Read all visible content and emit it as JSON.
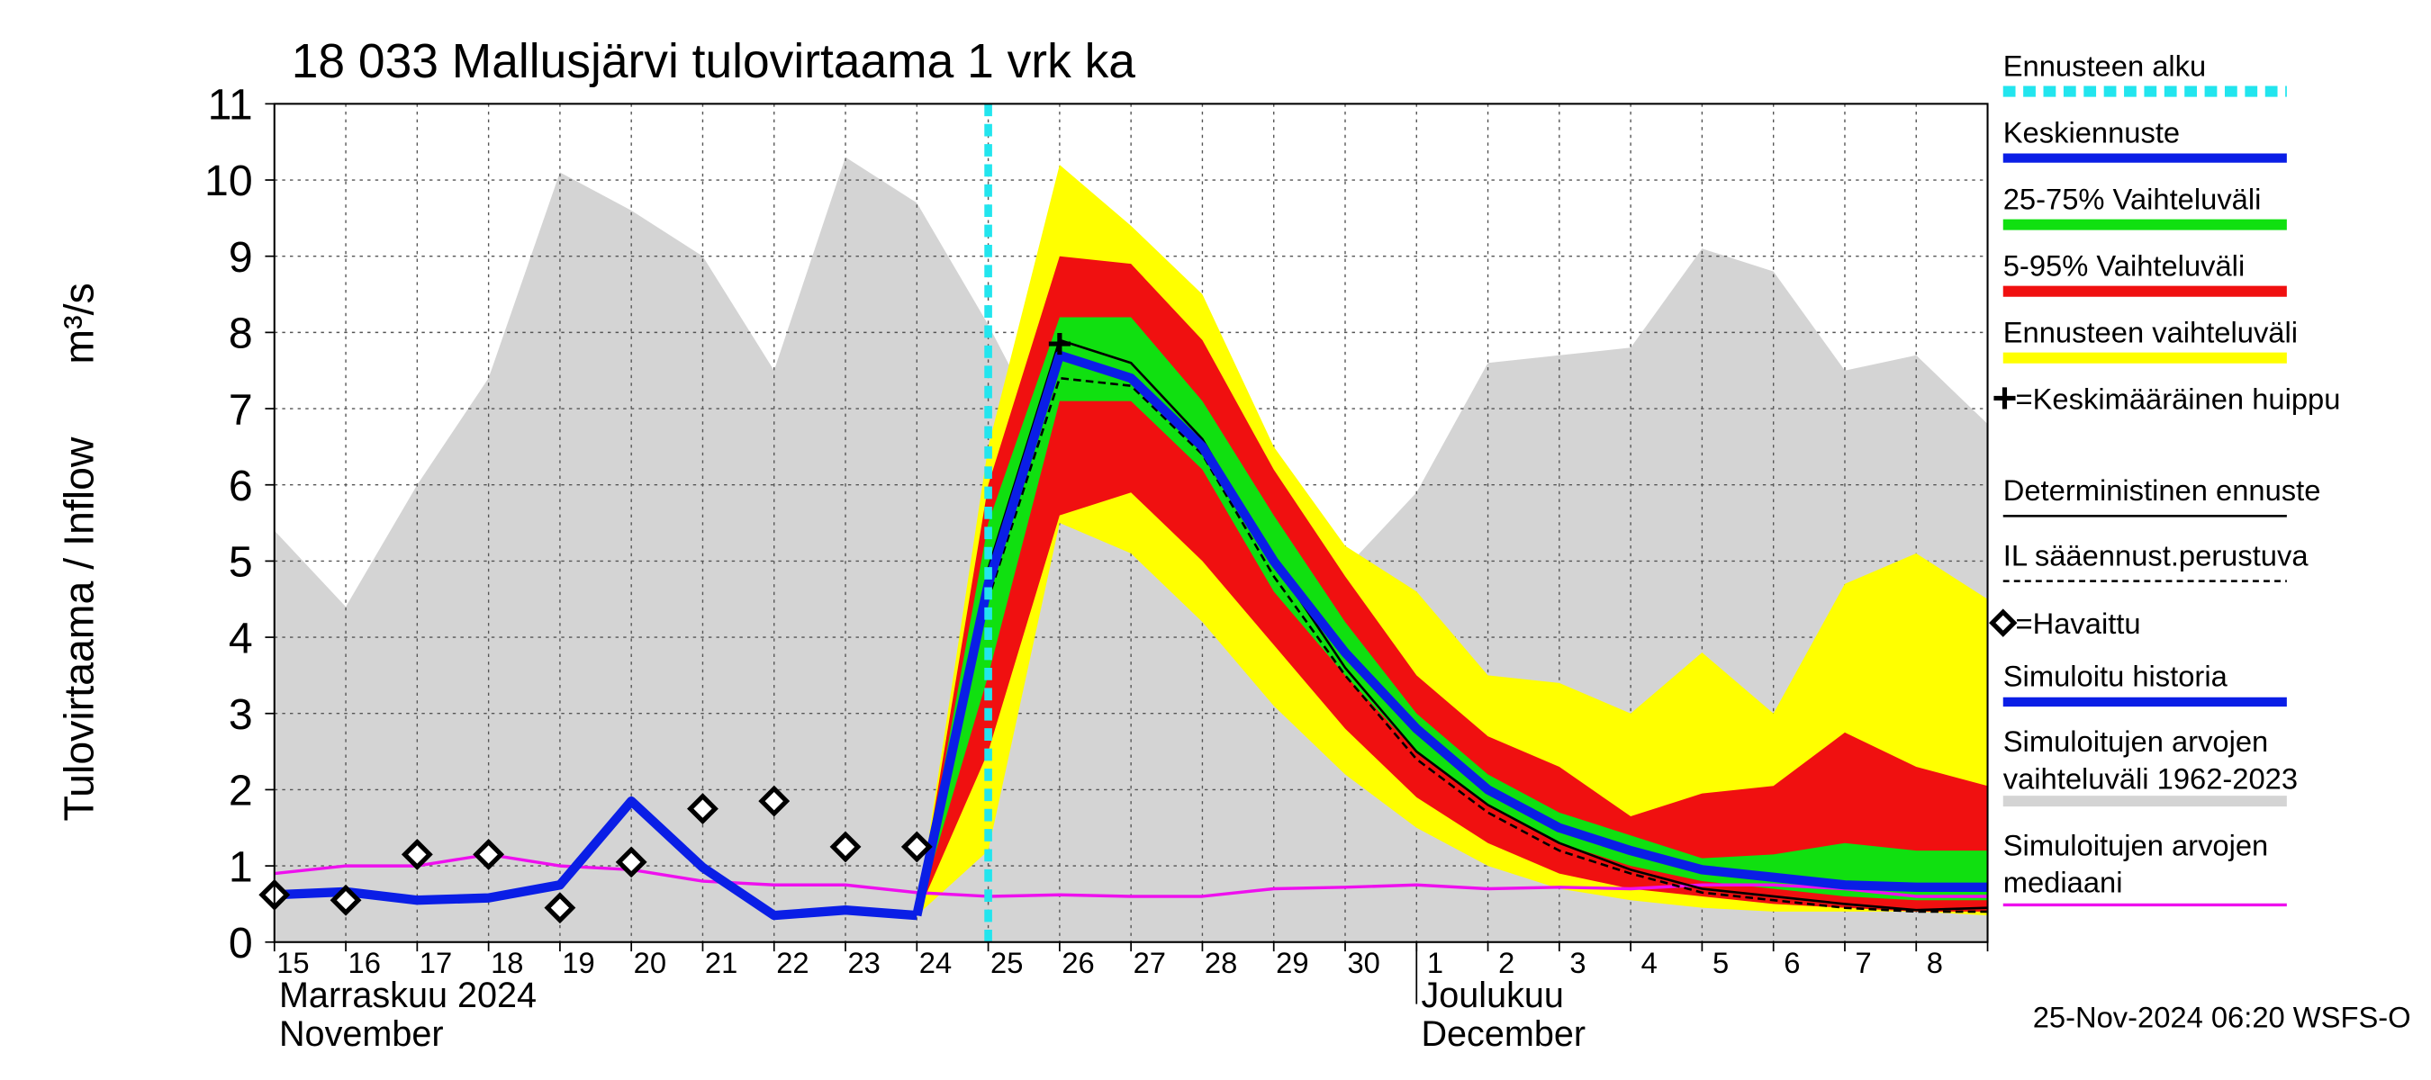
{
  "chart_data": {
    "type": "hydrograph",
    "title": "18 033 Mallusjärvi tulovirtaama 1 vrk ka",
    "y_label": "Tulovirtaama / Inflow",
    "y_unit": "m³/s",
    "categories": [
      "15",
      "16",
      "17",
      "18",
      "19",
      "20",
      "21",
      "22",
      "23",
      "24",
      "25",
      "26",
      "27",
      "28",
      "29",
      "30",
      "1",
      "2",
      "3",
      "4",
      "5",
      "6",
      "7",
      "8",
      null
    ],
    "month_labels": [
      {
        "at": "15",
        "lines": [
          "Marraskuu 2024",
          "November"
        ]
      },
      {
        "at": "1",
        "lines": [
          "Joulukuu",
          "December"
        ]
      }
    ],
    "footer": "25-Nov-2024 06:20 WSFS-O",
    "ylim": [
      0,
      11
    ],
    "yticks": [
      0,
      1,
      2,
      3,
      4,
      5,
      6,
      7,
      8,
      9,
      10,
      11
    ],
    "grid": true,
    "series": [
      {
        "name": [
          "Ennusteen alku"
        ],
        "kind": "vline",
        "color": "#22e5ee",
        "at": "25"
      },
      {
        "name": [
          "Keskiennuste"
        ],
        "kind": "line",
        "color": "#0a1ee6",
        "width": 6,
        "values": [
          null,
          null,
          null,
          null,
          null,
          null,
          null,
          null,
          null,
          0.35,
          4.7,
          7.7,
          7.4,
          6.5,
          5.0,
          3.8,
          2.8,
          2.0,
          1.5,
          1.2,
          0.95,
          0.85,
          0.75,
          0.72,
          0.72
        ]
      },
      {
        "name": [
          "25-75% Vaihteluväli"
        ],
        "kind": "band",
        "color": "#10e010",
        "low": [
          null,
          null,
          null,
          null,
          null,
          null,
          null,
          null,
          null,
          0.35,
          3.5,
          7.1,
          7.1,
          6.2,
          4.6,
          3.5,
          2.5,
          1.8,
          1.3,
          1.0,
          0.8,
          0.7,
          0.6,
          0.55,
          0.55
        ],
        "high": [
          null,
          null,
          null,
          null,
          null,
          null,
          null,
          null,
          null,
          0.35,
          5.5,
          8.2,
          8.2,
          7.1,
          5.6,
          4.2,
          3.0,
          2.2,
          1.7,
          1.4,
          1.1,
          1.15,
          1.3,
          1.2,
          1.2
        ]
      },
      {
        "name": [
          "5-95% Vaihteluväli"
        ],
        "kind": "band",
        "color": "#f01010",
        "low": [
          null,
          null,
          null,
          null,
          null,
          null,
          null,
          null,
          null,
          0.35,
          2.5,
          5.6,
          5.9,
          5.0,
          3.9,
          2.8,
          1.9,
          1.3,
          0.9,
          0.7,
          0.6,
          0.5,
          0.45,
          0.4,
          0.4
        ],
        "high": [
          null,
          null,
          null,
          null,
          null,
          null,
          null,
          null,
          null,
          0.35,
          6.0,
          9.0,
          8.9,
          7.9,
          6.2,
          4.8,
          3.5,
          2.7,
          2.3,
          1.65,
          1.95,
          2.05,
          2.75,
          2.3,
          2.05
        ]
      },
      {
        "name": [
          "Ennusteen vaihteluväli"
        ],
        "kind": "band",
        "color": "#ffff00",
        "low": [
          null,
          null,
          null,
          null,
          null,
          null,
          null,
          null,
          null,
          0.35,
          1.2,
          5.5,
          5.1,
          4.2,
          3.1,
          2.2,
          1.5,
          1.0,
          0.7,
          0.55,
          0.45,
          0.4,
          0.4,
          0.4,
          0.35
        ],
        "high": [
          null,
          null,
          null,
          null,
          null,
          null,
          null,
          null,
          null,
          0.35,
          6.5,
          10.2,
          9.4,
          8.5,
          6.5,
          5.2,
          4.6,
          3.5,
          3.4,
          3.0,
          3.8,
          3.0,
          4.7,
          5.1,
          4.5
        ]
      },
      {
        "name": [
          "=Keskimääräinen huippu"
        ],
        "kind": "peak",
        "color": "#000000",
        "values": [
          null,
          null,
          null,
          null,
          null,
          null,
          null,
          null,
          null,
          null,
          null,
          7.85,
          null,
          null,
          null,
          null,
          null,
          null,
          null,
          null,
          null,
          null,
          null,
          null,
          null
        ]
      },
      {
        "name": [
          "Deterministinen ennuste"
        ],
        "kind": "line",
        "color": "#000000",
        "width": 1.5,
        "values": [
          null,
          null,
          null,
          null,
          null,
          null,
          null,
          null,
          null,
          0.35,
          4.9,
          7.9,
          7.6,
          6.6,
          5.0,
          3.6,
          2.5,
          1.8,
          1.3,
          0.95,
          0.7,
          0.6,
          0.5,
          0.42,
          0.45
        ]
      },
      {
        "name": [
          "IL sääennust.perustuva"
        ],
        "kind": "dashed",
        "color": "#000000",
        "width": 1.5,
        "values": [
          null,
          null,
          null,
          null,
          null,
          null,
          null,
          null,
          null,
          0.35,
          4.5,
          7.4,
          7.3,
          6.4,
          4.8,
          3.5,
          2.4,
          1.7,
          1.2,
          0.9,
          0.65,
          0.55,
          0.45,
          0.4,
          0.4
        ]
      },
      {
        "name": [
          "=Havaittu"
        ],
        "kind": "markers",
        "color": "#000000",
        "values": [
          0.62,
          0.55,
          1.15,
          1.15,
          0.45,
          1.05,
          1.75,
          1.85,
          1.25,
          1.25,
          null,
          null,
          null,
          null,
          null,
          null,
          null,
          null,
          null,
          null,
          null,
          null,
          null,
          null,
          null
        ]
      },
      {
        "name": [
          "Simuloitu historia"
        ],
        "kind": "line",
        "color": "#0a1ee6",
        "width": 6,
        "values": [
          0.62,
          0.66,
          0.55,
          0.58,
          0.75,
          1.85,
          0.98,
          0.35,
          0.42,
          0.35,
          null,
          null,
          null,
          null,
          null,
          null,
          null,
          null,
          null,
          null,
          null,
          null,
          null,
          null,
          null
        ]
      },
      {
        "name": [
          "Simuloitujen arvojen",
          "vaihteluväli 1962-2023"
        ],
        "kind": "band",
        "color": "#d4d4d4",
        "low": [
          0,
          0,
          0,
          0,
          0,
          0,
          0,
          0,
          0,
          0,
          0,
          0,
          0,
          0,
          0,
          0,
          0,
          0,
          0,
          0,
          0,
          0,
          0,
          0,
          0
        ],
        "high": [
          5.4,
          4.4,
          6.0,
          7.4,
          10.1,
          9.6,
          9.0,
          7.5,
          10.3,
          9.7,
          8.1,
          6.3,
          6.6,
          6.9,
          6.2,
          4.9,
          5.9,
          7.6,
          7.7,
          7.8,
          9.1,
          8.8,
          7.5,
          7.7,
          6.8
        ]
      },
      {
        "name": [
          "Simuloitujen arvojen",
          "mediaani"
        ],
        "kind": "line",
        "color": "#ee10ee",
        "width": 2,
        "values": [
          0.9,
          1.0,
          1.0,
          1.15,
          1.0,
          0.95,
          0.8,
          0.75,
          0.75,
          0.65,
          0.6,
          0.62,
          0.6,
          0.6,
          0.7,
          0.72,
          0.75,
          0.7,
          0.72,
          0.7,
          0.75,
          0.75,
          0.7,
          0.6,
          0.6
        ]
      }
    ]
  }
}
